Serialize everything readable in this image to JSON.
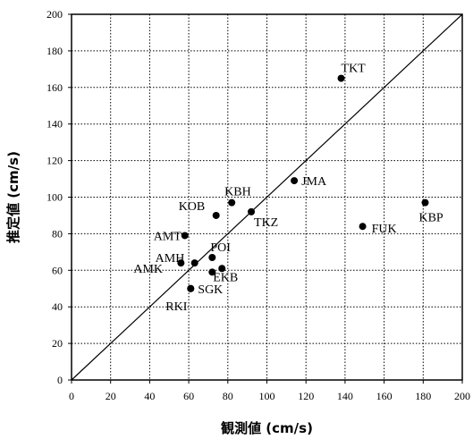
{
  "chart_data": {
    "type": "scatter",
    "xlabel": "観測値 (cm/s)",
    "ylabel": "推定値 (cm/s)",
    "xlim": [
      0,
      200
    ],
    "ylim": [
      0,
      200
    ],
    "x_ticks": [
      "0",
      "20",
      "40",
      "60",
      "80",
      "100",
      "120",
      "140",
      "160",
      "180",
      "200"
    ],
    "y_ticks": [
      "0",
      "20",
      "40",
      "60",
      "80",
      "100",
      "120",
      "140",
      "160",
      "180",
      "200"
    ],
    "grid": true,
    "reference_line": "y = x",
    "points": [
      {
        "label": "TKT",
        "x": 138,
        "y": 165
      },
      {
        "label": "JMA",
        "x": 114,
        "y": 109
      },
      {
        "label": "KBH",
        "x": 82,
        "y": 97
      },
      {
        "label": "KOB",
        "x": 74,
        "y": 90
      },
      {
        "label": "TKZ",
        "x": 92,
        "y": 92
      },
      {
        "label": "AMT",
        "x": 58,
        "y": 79
      },
      {
        "label": "FUK",
        "x": 149,
        "y": 84
      },
      {
        "label": "KBP",
        "x": 181,
        "y": 97
      },
      {
        "label": "AMH",
        "x": 63,
        "y": 64
      },
      {
        "label": "POI",
        "x": 72,
        "y": 67
      },
      {
        "label": "AMK",
        "x": 56,
        "y": 64
      },
      {
        "label": "EKB",
        "x": 77,
        "y": 61
      },
      {
        "label": "",
        "x": 72,
        "y": 59
      },
      {
        "label": "SGK",
        "x": 61,
        "y": 50
      },
      {
        "label": "RKI",
        "x": 61,
        "y": 50
      }
    ]
  }
}
